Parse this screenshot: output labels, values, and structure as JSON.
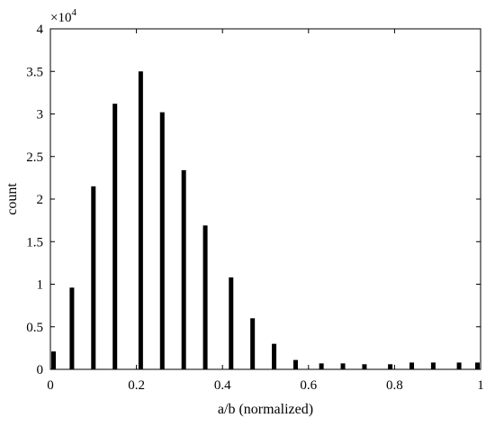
{
  "chart_data": {
    "type": "bar",
    "xlabel": "a/b (normalized)",
    "ylabel": "count",
    "xlim": [
      0,
      1
    ],
    "ylim": [
      0,
      40000
    ],
    "y_multiplier_label": "×10",
    "y_multiplier_exponent": "4",
    "x_ticks": [
      0,
      0.2,
      0.4,
      0.6,
      0.8,
      1
    ],
    "x_tick_labels": [
      "0",
      "0.2",
      "0.4",
      "0.6",
      "0.8",
      "1"
    ],
    "y_ticks": [
      0,
      5000,
      10000,
      15000,
      20000,
      25000,
      30000,
      35000,
      40000
    ],
    "y_tick_labels": [
      "0",
      "0.5",
      "1",
      "1.5",
      "2",
      "2.5",
      "3",
      "3.5",
      "4"
    ],
    "x": [
      0.0,
      0.05,
      0.1,
      0.15,
      0.21,
      0.26,
      0.31,
      0.36,
      0.42,
      0.47,
      0.52,
      0.57,
      0.63,
      0.68,
      0.73,
      0.79,
      0.84,
      0.89,
      0.95,
      1.0
    ],
    "values": [
      2100,
      9600,
      21500,
      31200,
      35000,
      30200,
      23400,
      16900,
      10800,
      6000,
      3000,
      1100,
      700,
      700,
      600,
      600,
      800,
      800,
      800,
      800
    ],
    "bar_color": "#000000",
    "grid": false,
    "box": true
  }
}
